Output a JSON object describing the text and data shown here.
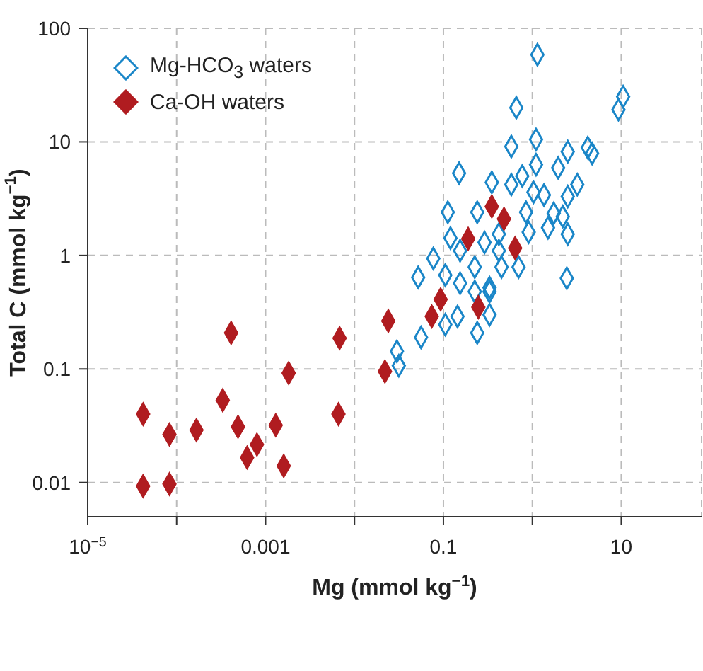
{
  "chart_data": {
    "type": "scatter",
    "xlabel": "Mg (mmol kg$^{−1}$)",
    "ylabel": "Total C (mmol kg$^{−1}$)",
    "log": "xy",
    "grid": true,
    "legend": "top left",
    "marker": "diamond",
    "xlim": [
      1e-05,
      80
    ],
    "xticks": [
      {
        "value": 1e-05,
        "label": "10$^{−5}$"
      },
      {
        "value": 0.0001,
        "label": null
      },
      0.001,
      {
        "value": 0.01,
        "label": null
      },
      0.1,
      {
        "value": 1,
        "label": null
      },
      10
    ],
    "ylim": [
      0.005,
      100
    ],
    "yticks": [
      0.01,
      0.1,
      1,
      10,
      100
    ],
    "series": [
      {
        "name": "Mg-HCO$_{3}$ waters",
        "color": "#1a86c8",
        "x": [
          1.14,
          10.5,
          9.3,
          0.66,
          1.1,
          0.58,
          0.15,
          4.2,
          4.7,
          2.5,
          1.95,
          1.1,
          0.35,
          0.58,
          3.2,
          1.03,
          0.112,
          0.24,
          0.85,
          2.5,
          2.2,
          2.5,
          1.5,
          2.44,
          0.7,
          0.052,
          0.077,
          0.105,
          0.154,
          0.225,
          0.33,
          0.45,
          0.144,
          0.105,
          0.24,
          0.056,
          0.03,
          0.0315,
          0.33,
          0.33,
          0.91,
          0.42,
          0.29,
          0.12,
          0.42,
          0.225,
          0.154,
          1.74,
          1.35,
          0.77
        ],
        "values": [
          58.6,
          25,
          19.2,
          20,
          10.5,
          9.1,
          5.3,
          8.9,
          7.9,
          8.2,
          5.9,
          6.3,
          4.4,
          4.2,
          4.2,
          3.6,
          2.4,
          2.4,
          2.4,
          3.3,
          2.2,
          1.54,
          1.75,
          0.63,
          0.79,
          0.64,
          0.94,
          0.67,
          1.1,
          0.79,
          0.52,
          0.79,
          0.29,
          0.246,
          0.208,
          0.19,
          0.143,
          0.107,
          0.3,
          0.48,
          1.6,
          1.54,
          1.3,
          1.42,
          1.1,
          0.48,
          0.57,
          2.35,
          3.4,
          5
        ]
      },
      {
        "name": "Ca-OH waters",
        "color": "#b01c20",
        "x": [
          4.2e-05,
          8.3e-05,
          4.2e-05,
          8.3e-05,
          0.000167,
          0.00033,
          0.00041,
          0.00049,
          0.0008,
          0.00062,
          0.0013,
          0.00182,
          0.0016,
          0.0066,
          0.0068,
          0.024,
          0.022,
          0.074,
          0.093,
          0.247,
          0.19,
          0.64,
          0.35,
          0.48
        ],
        "values": [
          0.0093,
          0.0097,
          0.04,
          0.0265,
          0.029,
          0.053,
          0.208,
          0.031,
          0.0216,
          0.0166,
          0.032,
          0.092,
          0.014,
          0.04,
          0.187,
          0.265,
          0.095,
          0.29,
          0.41,
          0.35,
          1.4,
          1.16,
          2.7,
          2.1
        ]
      }
    ]
  }
}
